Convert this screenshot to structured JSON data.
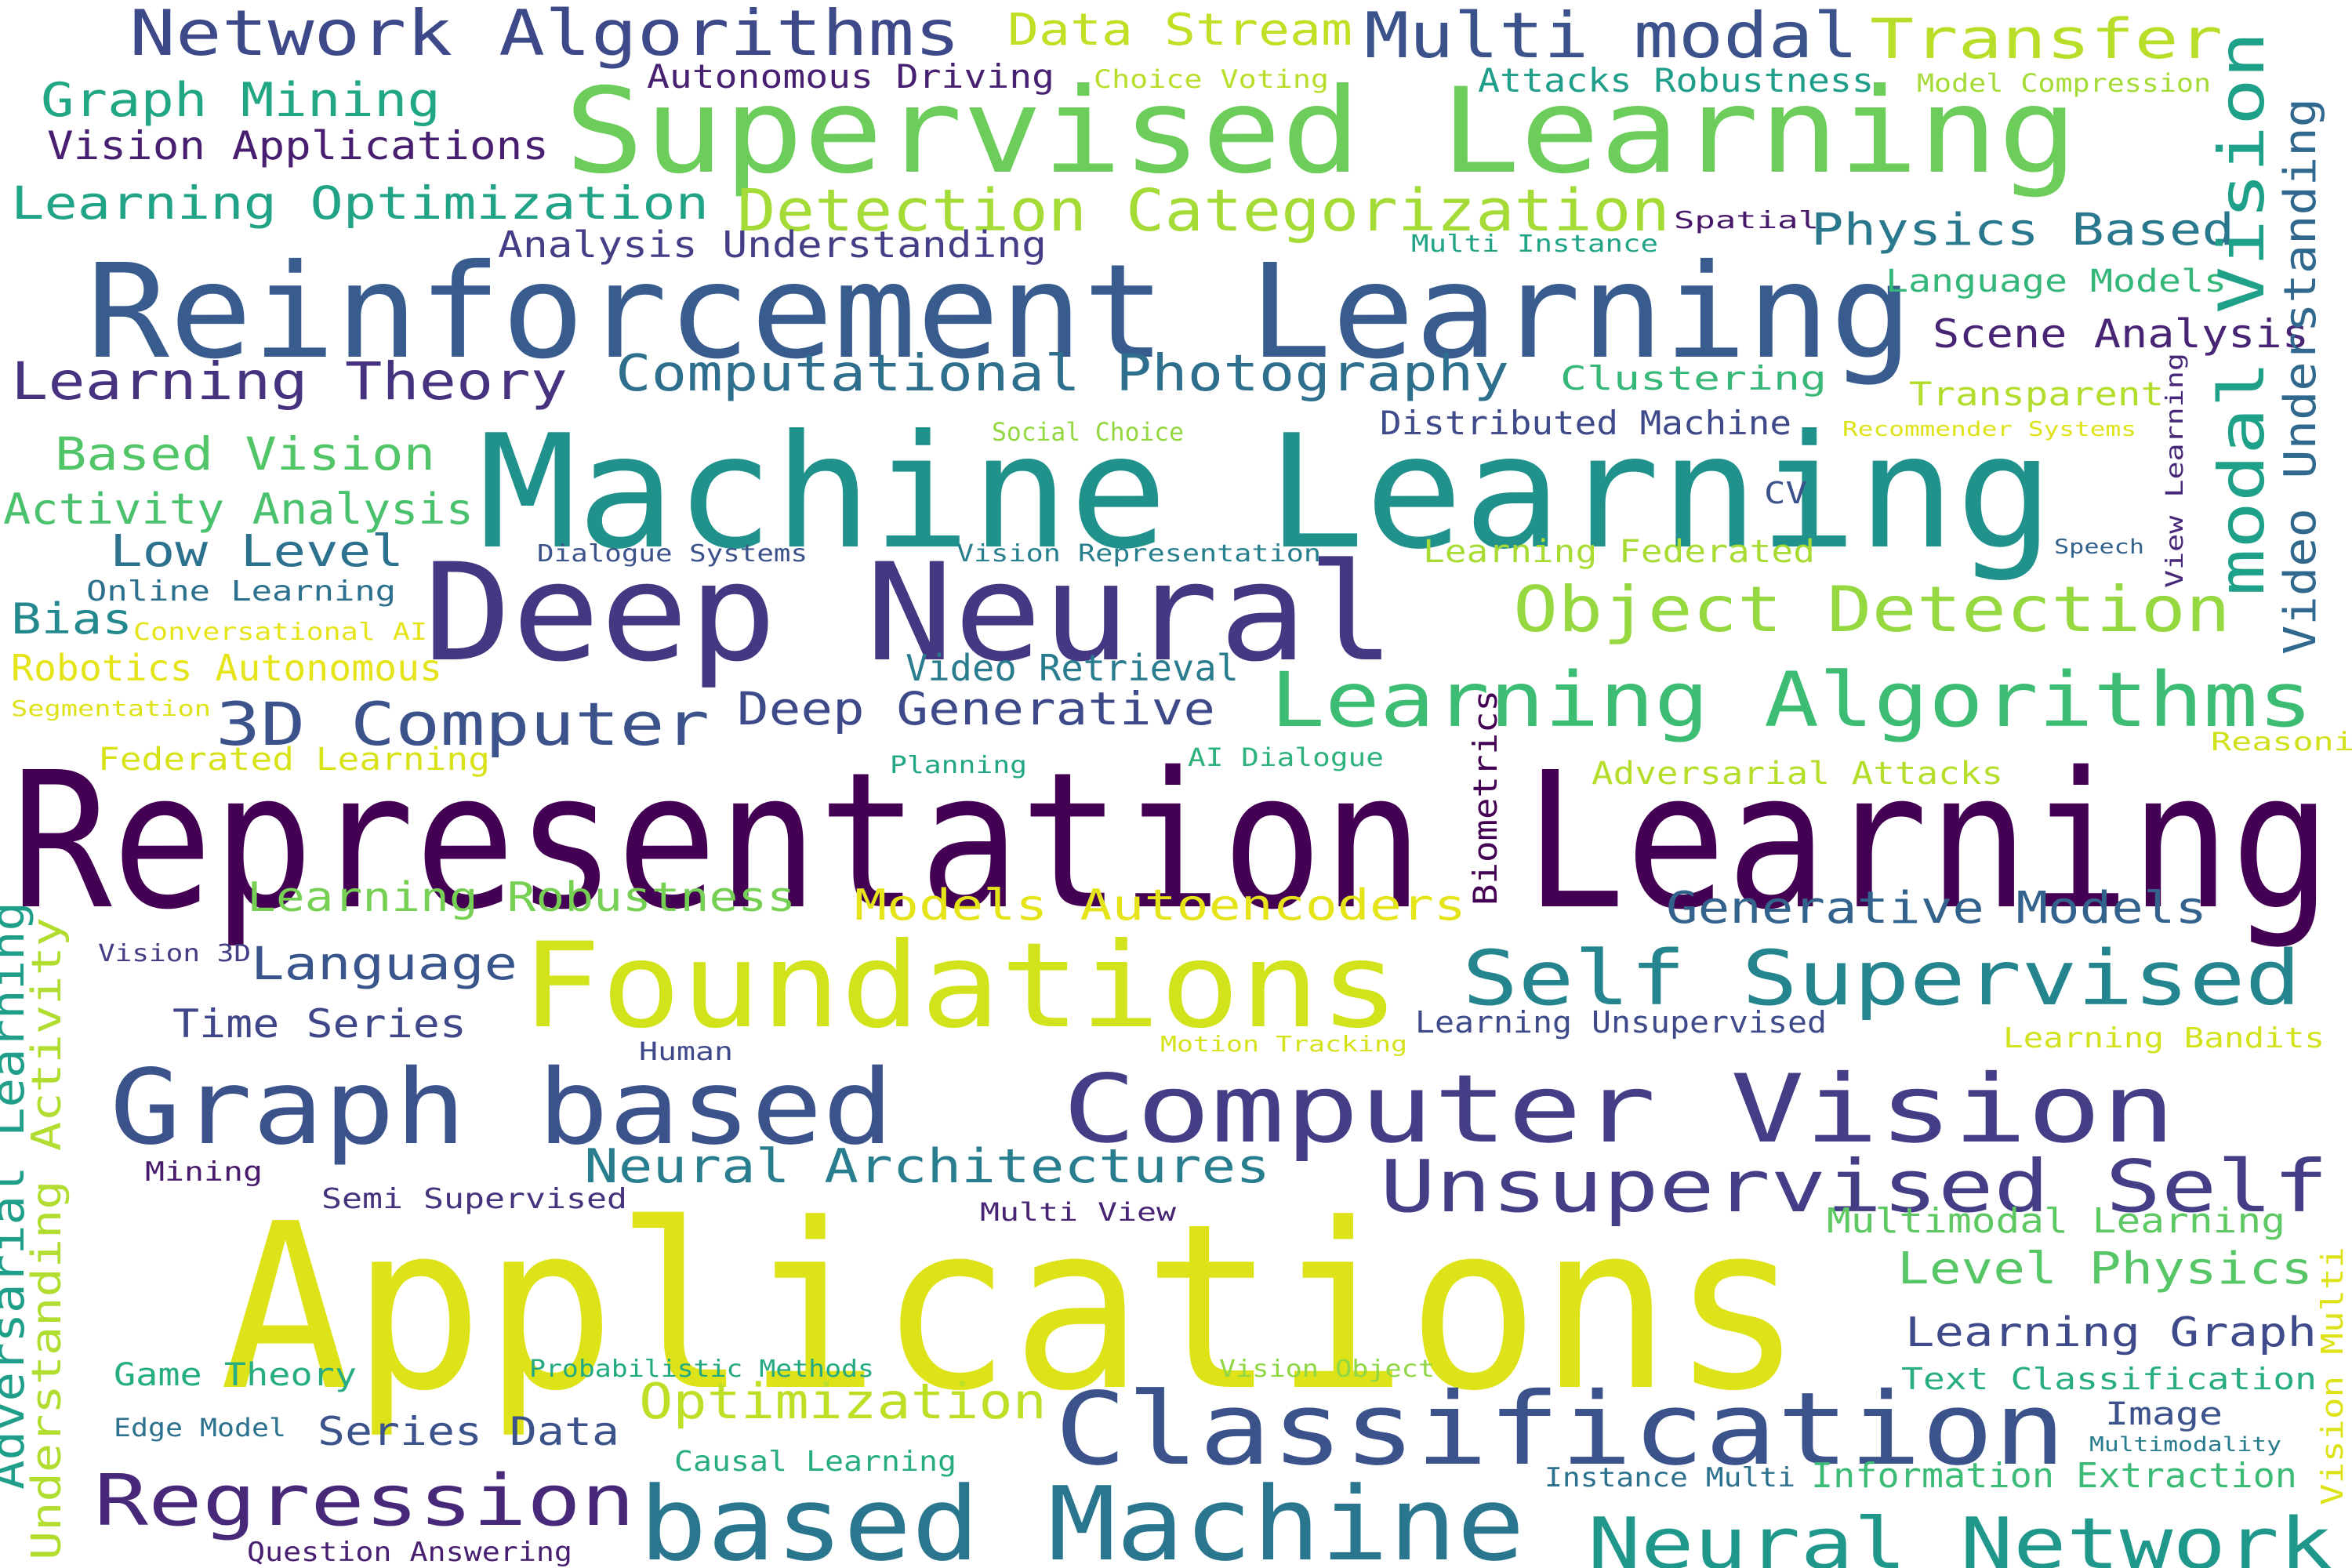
{
  "words": [
    {
      "text": "Representation Learning",
      "color": "#440154"
    },
    {
      "text": "Applications",
      "color": "#dde318"
    },
    {
      "text": "Machine Learning",
      "color": "#21918c"
    },
    {
      "text": "Reinforcement Learning",
      "color": "#375c8d"
    },
    {
      "text": "Deep Neural",
      "color": "#453781"
    },
    {
      "text": "Supervised Learning",
      "color": "#6ccd5a"
    },
    {
      "text": "Foundations",
      "color": "#d2e21b"
    },
    {
      "text": "Computer Vision",
      "color": "#433e85"
    },
    {
      "text": "Classification",
      "color": "#3b528b"
    },
    {
      "text": "based Machine",
      "color": "#2a768e"
    },
    {
      "text": "Graph based",
      "color": "#3b528b"
    },
    {
      "text": "Learning Algorithms",
      "color": "#3dbc74"
    },
    {
      "text": "Self Supervised",
      "color": "#25858e"
    },
    {
      "text": "Unsupervised Self",
      "color": "#433e85"
    },
    {
      "text": "Neural Network",
      "color": "#1f988b"
    },
    {
      "text": "Regression",
      "color": "#482878"
    },
    {
      "text": "Object Detection",
      "color": "#95d840"
    },
    {
      "text": "Network Algorithms",
      "color": "#3e4989"
    },
    {
      "text": "Multi modal",
      "color": "#3b528b"
    },
    {
      "text": "Transfer",
      "color": "#b8de29"
    },
    {
      "text": "Detection Categorization",
      "color": "#a5db36"
    },
    {
      "text": "3D Computer",
      "color": "#3b528b"
    },
    {
      "text": "Learning Theory",
      "color": "#46327e"
    },
    {
      "text": "Computational Photography",
      "color": "#2e6f8e"
    },
    {
      "text": "Deep Generative",
      "color": "#3e4989"
    },
    {
      "text": "Neural Architectures",
      "color": "#287d8e"
    },
    {
      "text": "Generative Models",
      "color": "#33638d"
    },
    {
      "text": "Models Autoencoders",
      "color": "#e5e419"
    },
    {
      "text": "Learning Robustness",
      "color": "#75d054"
    },
    {
      "text": "Optimization",
      "color": "#bddf26"
    },
    {
      "text": "Data Stream",
      "color": "#c0df25"
    },
    {
      "text": "Graph Mining",
      "color": "#22a785"
    },
    {
      "text": "Learning Optimization",
      "color": "#20a386"
    },
    {
      "text": "Based Vision",
      "color": "#52c569"
    },
    {
      "text": "Activity Analysis",
      "color": "#4ac16d"
    },
    {
      "text": "Language",
      "color": "#39568c"
    },
    {
      "text": "Time Series",
      "color": "#3f4788"
    },
    {
      "text": "Vision Applications",
      "color": "#481f70"
    },
    {
      "text": "Physics Based",
      "color": "#2a788e"
    },
    {
      "text": "Scene Analysis",
      "color": "#482475"
    },
    {
      "text": "Level Physics",
      "color": "#56c667"
    },
    {
      "text": "Learning Graph",
      "color": "#3e4a89"
    },
    {
      "text": "Multimodal Learning",
      "color": "#5ec962"
    },
    {
      "text": "Information Extraction",
      "color": "#3bbb75"
    },
    {
      "text": "Series Data",
      "color": "#3b528b"
    },
    {
      "text": "Low Level",
      "color": "#2c718e"
    },
    {
      "text": "Analysis Understanding",
      "color": "#433e85"
    },
    {
      "text": "Bias",
      "color": "#23898e"
    },
    {
      "text": "Robotics Autonomous",
      "color": "#e5e419"
    },
    {
      "text": "Video Retrieval",
      "color": "#287c8e"
    },
    {
      "text": "Clustering",
      "color": "#37b878"
    },
    {
      "text": "Transparent",
      "color": "#b2dd2d"
    },
    {
      "text": "Distributed Machine",
      "color": "#3e4a89"
    },
    {
      "text": "Autonomous Driving",
      "color": "#482071"
    },
    {
      "text": "Attacks Robustness",
      "color": "#1f9e89"
    },
    {
      "text": "Language Models",
      "color": "#35b779"
    },
    {
      "text": "Learning Federated",
      "color": "#a8db34"
    },
    {
      "text": "Adversarial Attacks",
      "color": "#b5de2b"
    },
    {
      "text": "Learning Unsupervised",
      "color": "#3e4a89"
    },
    {
      "text": "Text Classification",
      "color": "#29af7f"
    },
    {
      "text": "Game Theory",
      "color": "#26ad81"
    },
    {
      "text": "Federated Learning",
      "color": "#d8e219"
    },
    {
      "text": "Online Learning",
      "color": "#2d708e"
    },
    {
      "text": "Semi Supervised",
      "color": "#46337e"
    },
    {
      "text": "Learning Bandits",
      "color": "#d2e21b"
    },
    {
      "text": "Causal Learning",
      "color": "#27ad81"
    },
    {
      "text": "Question Answering",
      "color": "#481f70"
    },
    {
      "text": "Image",
      "color": "#3b528b"
    },
    {
      "text": "Instance Multi",
      "color": "#2c718e"
    },
    {
      "text": "Edge Model",
      "color": "#2c728e"
    },
    {
      "text": "Mining",
      "color": "#481a6c"
    },
    {
      "text": "Human",
      "color": "#3e4989"
    },
    {
      "text": "Vision 3D",
      "color": "#433d84"
    },
    {
      "text": "Multi View",
      "color": "#482475"
    },
    {
      "text": "Probabilistic Methods",
      "color": "#24aa83"
    },
    {
      "text": "Vision Object",
      "color": "#8fd744"
    },
    {
      "text": "Motion Tracking",
      "color": "#d5e21a"
    },
    {
      "text": "Dialogue Systems",
      "color": "#3b528b"
    },
    {
      "text": "Vision Representation",
      "color": "#277f8e"
    },
    {
      "text": "Conversational AI",
      "color": "#e5e419"
    },
    {
      "text": "Segmentation",
      "color": "#dde318"
    },
    {
      "text": "Social Choice",
      "color": "#93d741"
    },
    {
      "text": "Choice Voting",
      "color": "#b8de29"
    },
    {
      "text": "Model Compression",
      "color": "#a5db36"
    },
    {
      "text": "Multi Instance",
      "color": "#20a486"
    },
    {
      "text": "Spatial",
      "color": "#48186a"
    },
    {
      "text": "Recommender Systems",
      "color": "#dde318"
    },
    {
      "text": "Planning",
      "color": "#22a785"
    },
    {
      "text": "AI Dialogue",
      "color": "#2db27d"
    },
    {
      "text": "Reasoning",
      "color": "#d0e11c"
    },
    {
      "text": "CV",
      "color": "#3b528b"
    },
    {
      "text": "Speech",
      "color": "#33638d"
    },
    {
      "text": "Multimodality",
      "color": "#287c8e"
    },
    {
      "text": "modal Vision",
      "color": "#1fa088"
    },
    {
      "text": "Video Understanding",
      "color": "#31688e"
    },
    {
      "text": "View Learning",
      "color": "#482878"
    },
    {
      "text": "Biometrics",
      "color": "#440154"
    },
    {
      "text": "Adversarial Learning",
      "color": "#1f9e89"
    },
    {
      "text": "Understanding Activity",
      "color": "#b0dd2f"
    },
    {
      "text": "Vision Multi",
      "color": "#dde318"
    }
  ]
}
